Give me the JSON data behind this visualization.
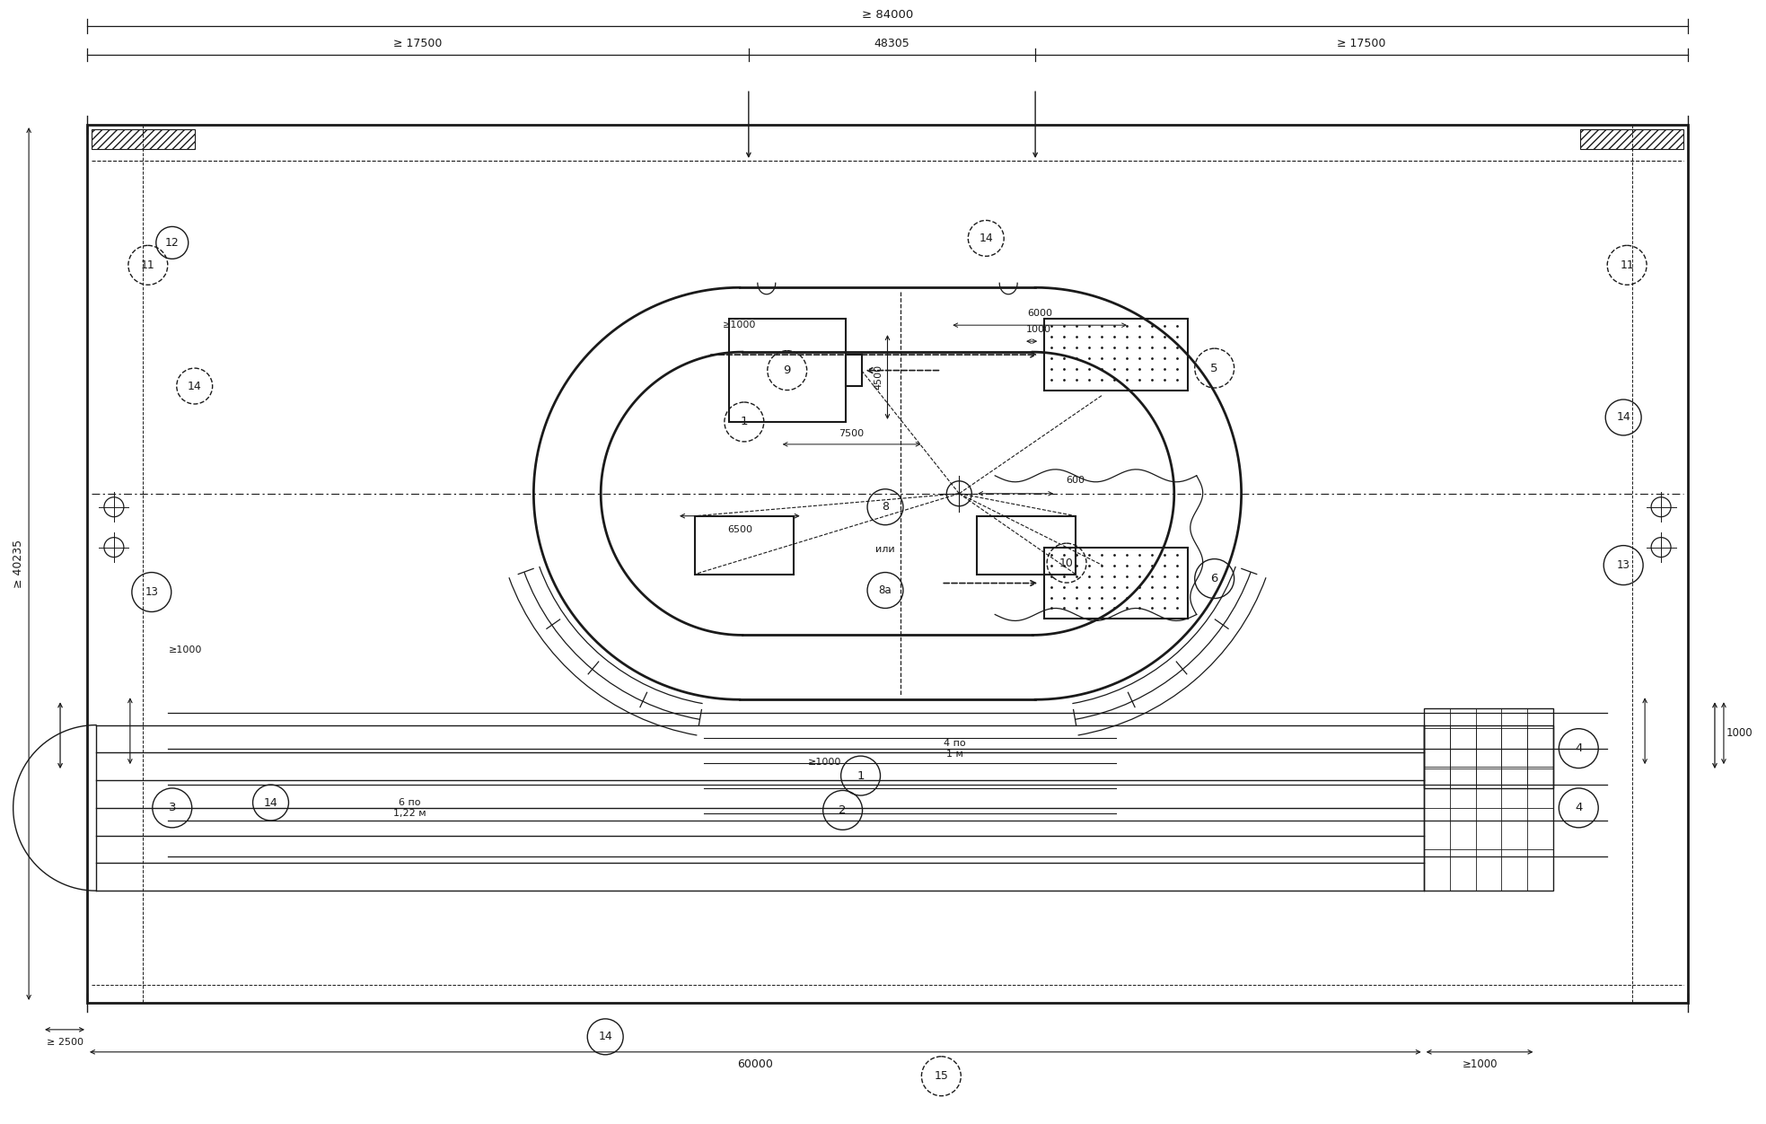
{
  "bg_color": "#ffffff",
  "lc": "#1a1a1a",
  "fig_w": 19.67,
  "fig_h": 12.52,
  "title_top": "≥ 84000",
  "dim_17500L": "≥ 17500",
  "dim_48305": "48305",
  "dim_17500R": "≥ 17500",
  "dim_40235": "≥ 40235",
  "dim_60000": "60000",
  "dim_2500": "≥ 2500",
  "dim_4500": "4500",
  "dim_6500": "6500",
  "dim_7500": "7500",
  "dim_6000": "6000",
  "dim_1000a": "1000",
  "dim_600": "600",
  "dim_1000L": "≥1000",
  "dim_1000T": "≥1000",
  "dim_1000B": "≥1000",
  "dim_1000BR": "≥1000",
  "dim_4po1m": "4 по\n1 м",
  "dim_6po122": "6 по\n1,22 м",
  "text_ili": "или",
  "dim_1000_side": "1000"
}
